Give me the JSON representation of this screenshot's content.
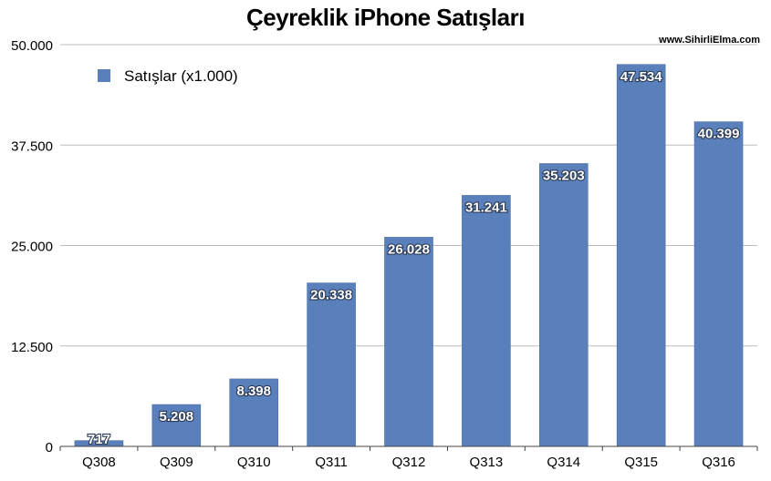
{
  "chart_data": {
    "type": "bar",
    "title": "Çeyreklik iPhone Satışları",
    "watermark": "www.SihirliElma.com",
    "categories": [
      "Q308",
      "Q309",
      "Q310",
      "Q311",
      "Q312",
      "Q313",
      "Q314",
      "Q315",
      "Q316"
    ],
    "series": [
      {
        "name": "Satışlar (x1.000)",
        "values": [
          717,
          5208,
          8398,
          20338,
          26028,
          31241,
          35203,
          47534,
          40399
        ],
        "labels": [
          "717",
          "5.208",
          "8.398",
          "20.338",
          "26.028",
          "31.241",
          "35.203",
          "47.534",
          "40.399"
        ],
        "color": "#5a80bb"
      }
    ],
    "ylim": [
      0,
      50000
    ],
    "yticks": [
      0,
      12500,
      25000,
      37500,
      50000
    ],
    "ytick_labels": [
      "0",
      "12.500",
      "25.000",
      "37.500",
      "50.000"
    ],
    "grid": true,
    "legend_position": "top-left",
    "xlabel": "",
    "ylabel": ""
  }
}
